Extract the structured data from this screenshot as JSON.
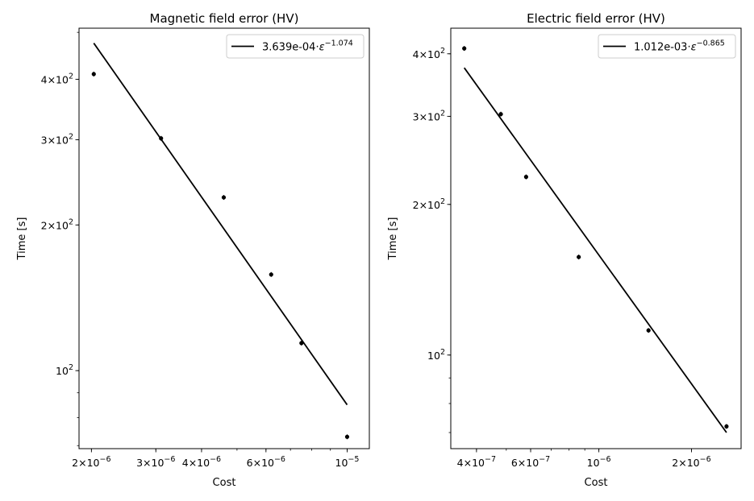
{
  "chart_data": [
    {
      "type": "scatter",
      "title": "Magnetic field error (HV)",
      "xlabel": "Cost",
      "ylabel": "Time [s]",
      "xscale": "log",
      "yscale": "log",
      "xlim": [
        1.85e-06,
        1.15e-05
      ],
      "ylim": [
        69,
        510
      ],
      "grid": false,
      "legend": "top-right",
      "x_ticks": [
        {
          "value": 2e-06,
          "mantissa": "2",
          "exp": "−6"
        },
        {
          "value": 3e-06,
          "mantissa": "3",
          "exp": "−6"
        },
        {
          "value": 4e-06,
          "mantissa": "4",
          "exp": "−6"
        },
        {
          "value": 6e-06,
          "mantissa": "6",
          "exp": "−6"
        },
        {
          "value": 1e-05,
          "mantissa": "",
          "exp": "−5"
        }
      ],
      "y_ticks": [
        {
          "value": 100,
          "mantissa": "",
          "exp": "2"
        },
        {
          "value": 200,
          "mantissa": "2",
          "exp": "2"
        },
        {
          "value": 300,
          "mantissa": "3",
          "exp": "2"
        },
        {
          "value": 400,
          "mantissa": "4",
          "exp": "2"
        }
      ],
      "points": {
        "x": [
          2.03e-06,
          3.1e-06,
          4.6e-06,
          6.2e-06,
          7.5e-06,
          1e-05
        ],
        "y": [
          410,
          302,
          228,
          158,
          114,
          73
        ]
      },
      "fit": {
        "x": [
          2.03e-06,
          1e-05
        ],
        "y": [
          475,
          85
        ],
        "legend_prefix": "3.639e-04·",
        "legend_var": "ε",
        "legend_exp": "−1.074"
      }
    },
    {
      "type": "scatter",
      "title": "Electric field error (HV)",
      "xlabel": "Cost",
      "ylabel": "Time [s]",
      "xscale": "log",
      "yscale": "log",
      "xlim": [
        3.3e-07,
        2.9e-06
      ],
      "ylim": [
        65,
        450
      ],
      "grid": false,
      "legend": "top-right",
      "x_ticks": [
        {
          "value": 4e-07,
          "mantissa": "4",
          "exp": "−7"
        },
        {
          "value": 6e-07,
          "mantissa": "6",
          "exp": "−7"
        },
        {
          "value": 1e-06,
          "mantissa": "",
          "exp": "−6"
        },
        {
          "value": 2e-06,
          "mantissa": "2",
          "exp": "−6"
        }
      ],
      "y_ticks": [
        {
          "value": 100,
          "mantissa": "",
          "exp": "2"
        },
        {
          "value": 200,
          "mantissa": "2",
          "exp": "2"
        },
        {
          "value": 300,
          "mantissa": "3",
          "exp": "2"
        },
        {
          "value": 400,
          "mantissa": "4",
          "exp": "2"
        }
      ],
      "points": {
        "x": [
          3.65e-07,
          4.8e-07,
          5.8e-07,
          8.6e-07,
          1.45e-06,
          2.6e-06
        ],
        "y": [
          410,
          303,
          227,
          157,
          112,
          72
        ]
      },
      "fit": {
        "x": [
          3.65e-07,
          2.6e-06
        ],
        "y": [
          375,
          70
        ],
        "legend_prefix": "1.012e-03·",
        "legend_var": "ε",
        "legend_exp": "−0.865"
      }
    }
  ]
}
